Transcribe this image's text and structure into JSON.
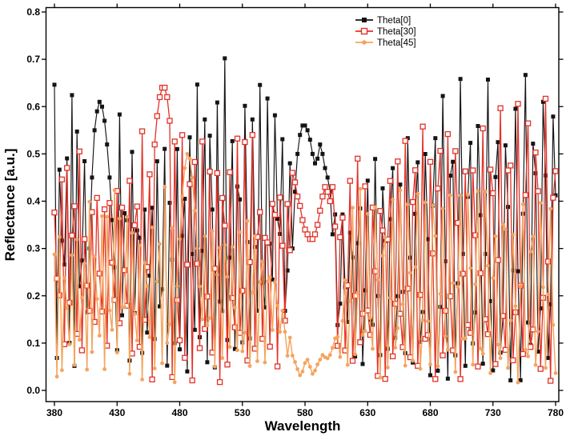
{
  "figure": {
    "background": "#ffffff",
    "axis_color": "#000000"
  },
  "chart_data": {
    "type": "line",
    "title": "",
    "xlabel": "Wavelength",
    "ylabel": "Reflectance [a.u.]",
    "xlim": [
      380,
      780
    ],
    "ylim": [
      0.0,
      0.8
    ],
    "xticks": [
      380,
      430,
      480,
      530,
      580,
      630,
      680,
      730,
      780
    ],
    "xtick_labels": [
      "380",
      "430",
      "480",
      "530",
      "580",
      "630",
      "680",
      "730",
      "780"
    ],
    "yticks": [
      0.0,
      0.1,
      0.2,
      0.3,
      0.4,
      0.5,
      0.6,
      0.7,
      0.8
    ],
    "ytick_labels": [
      "0.0",
      "0.1",
      "0.2",
      "0.3",
      "0.4",
      "0.5",
      "0.6",
      "0.7",
      "0.8"
    ],
    "grid": false,
    "ticks": "short outward ticks on all four spines; labels only left and bottom",
    "legend": {
      "position": "inside top, right of center, no frame"
    },
    "sample_step_nm": 2,
    "note": "Dense interference fringes oscillating between envelopes; individual fringe points are unresolvable, so series are described by envelope breakpoints [wavelength_nm, reflectance], explicit smooth segments read from the plot, and fringe oscillation parameters.",
    "series": [
      {
        "name": "Theta[0]",
        "color": "#141414",
        "marker": "filled-square",
        "marker_size": 5,
        "line_width": 1.15,
        "envelope_upper": [
          [
            380,
            0.71
          ],
          [
            386,
            0.7
          ],
          [
            392,
            0.66
          ],
          [
            398,
            0.63
          ],
          [
            404,
            0.62
          ],
          [
            430,
            0.62
          ],
          [
            436,
            0.56
          ],
          [
            444,
            0.5
          ],
          [
            450,
            0.46
          ],
          [
            456,
            0.49
          ],
          [
            462,
            0.53
          ],
          [
            468,
            0.57
          ],
          [
            474,
            0.61
          ],
          [
            480,
            0.64
          ],
          [
            488,
            0.68
          ],
          [
            496,
            0.71
          ],
          [
            506,
            0.72
          ],
          [
            516,
            0.71
          ],
          [
            526,
            0.72
          ],
          [
            536,
            0.69
          ],
          [
            546,
            0.67
          ],
          [
            556,
            0.65
          ],
          [
            564,
            0.61
          ],
          [
            569,
            0.55
          ],
          [
            603,
            0.45
          ],
          [
            612,
            0.45
          ],
          [
            620,
            0.44
          ],
          [
            628,
            0.48
          ],
          [
            636,
            0.52
          ],
          [
            644,
            0.56
          ],
          [
            652,
            0.58
          ],
          [
            660,
            0.61
          ],
          [
            668,
            0.64
          ],
          [
            676,
            0.67
          ],
          [
            684,
            0.69
          ],
          [
            692,
            0.71
          ],
          [
            700,
            0.7
          ],
          [
            708,
            0.68
          ],
          [
            716,
            0.7
          ],
          [
            724,
            0.71
          ],
          [
            732,
            0.7
          ],
          [
            740,
            0.71
          ],
          [
            748,
            0.7
          ],
          [
            756,
            0.71
          ],
          [
            764,
            0.7
          ],
          [
            772,
            0.71
          ],
          [
            780,
            0.72
          ]
        ],
        "envelope_lower": [
          [
            380,
            0.1
          ],
          [
            400,
            0.14
          ],
          [
            420,
            0.15
          ],
          [
            440,
            0.12
          ],
          [
            460,
            0.08
          ],
          [
            480,
            0.03
          ],
          [
            500,
            0.04
          ],
          [
            520,
            0.06
          ],
          [
            540,
            0.1
          ],
          [
            562,
            0.22
          ],
          [
            604,
            0.12
          ],
          [
            620,
            0.08
          ],
          [
            640,
            0.06
          ],
          [
            660,
            0.05
          ],
          [
            680,
            0.03
          ],
          [
            700,
            0.04
          ],
          [
            720,
            0.05
          ],
          [
            740,
            0.04
          ],
          [
            760,
            0.05
          ],
          [
            780,
            0.06
          ]
        ],
        "smooth_segments": [
          [
            [
              408,
              0.3
            ],
            [
              410,
              0.45
            ],
            [
              412,
              0.55
            ],
            [
              414,
              0.59
            ],
            [
              416,
              0.61
            ],
            [
              418,
              0.6
            ],
            [
              420,
              0.57
            ],
            [
              422,
              0.52
            ],
            [
              424,
              0.45
            ],
            [
              426,
              0.36
            ],
            [
              428,
              0.26
            ]
          ],
          [
            [
              570,
              0.3
            ],
            [
              572,
              0.42
            ],
            [
              574,
              0.5
            ],
            [
              576,
              0.54
            ],
            [
              578,
              0.56
            ],
            [
              580,
              0.56
            ],
            [
              582,
              0.55
            ],
            [
              584,
              0.53
            ],
            [
              586,
              0.5
            ],
            [
              588,
              0.48
            ],
            [
              590,
              0.49
            ],
            [
              592,
              0.52
            ],
            [
              594,
              0.5
            ],
            [
              596,
              0.47
            ],
            [
              598,
              0.45
            ],
            [
              600,
              0.42
            ],
            [
              602,
              0.33
            ]
          ]
        ],
        "oscillation": {
          "period_nm": 4.55,
          "period_growth_per_nm": 0.0035,
          "phase_rad": 1.4
        }
      },
      {
        "name": "Theta[30]",
        "color": "#e23228",
        "marker": "open-square",
        "marker_size": 6,
        "line_width": 1.3,
        "envelope_upper": [
          [
            380,
            0.62
          ],
          [
            388,
            0.6
          ],
          [
            396,
            0.58
          ],
          [
            404,
            0.55
          ],
          [
            412,
            0.51
          ],
          [
            420,
            0.48
          ],
          [
            428,
            0.52
          ],
          [
            436,
            0.55
          ],
          [
            444,
            0.58
          ],
          [
            452,
            0.6
          ],
          [
            458,
            0.62
          ],
          [
            474,
            0.64
          ],
          [
            482,
            0.66
          ],
          [
            490,
            0.65
          ],
          [
            498,
            0.63
          ],
          [
            508,
            0.62
          ],
          [
            518,
            0.63
          ],
          [
            528,
            0.62
          ],
          [
            538,
            0.6
          ],
          [
            548,
            0.56
          ],
          [
            558,
            0.52
          ],
          [
            568,
            0.47
          ],
          [
            603,
            0.45
          ],
          [
            610,
            0.5
          ],
          [
            618,
            0.51
          ],
          [
            626,
            0.52
          ],
          [
            636,
            0.53
          ],
          [
            646,
            0.56
          ],
          [
            656,
            0.58
          ],
          [
            666,
            0.6
          ],
          [
            676,
            0.61
          ],
          [
            686,
            0.63
          ],
          [
            696,
            0.62
          ],
          [
            708,
            0.63
          ],
          [
            720,
            0.62
          ],
          [
            732,
            0.64
          ],
          [
            744,
            0.63
          ],
          [
            756,
            0.64
          ],
          [
            768,
            0.63
          ],
          [
            780,
            0.64
          ]
        ],
        "envelope_lower": [
          [
            380,
            0.06
          ],
          [
            400,
            0.08
          ],
          [
            420,
            0.1
          ],
          [
            440,
            0.08
          ],
          [
            460,
            0.05
          ],
          [
            480,
            0.03
          ],
          [
            500,
            0.04
          ],
          [
            520,
            0.05
          ],
          [
            540,
            0.08
          ],
          [
            562,
            0.18
          ],
          [
            604,
            0.1
          ],
          [
            624,
            0.06
          ],
          [
            644,
            0.05
          ],
          [
            664,
            0.04
          ],
          [
            684,
            0.03
          ],
          [
            704,
            0.04
          ],
          [
            724,
            0.05
          ],
          [
            744,
            0.04
          ],
          [
            764,
            0.05
          ],
          [
            780,
            0.05
          ]
        ],
        "smooth_segments": [
          [
            [
              460,
              0.52
            ],
            [
              462,
              0.58
            ],
            [
              464,
              0.62
            ],
            [
              466,
              0.64
            ],
            [
              468,
              0.64
            ],
            [
              470,
              0.62
            ],
            [
              472,
              0.57
            ]
          ],
          [
            [
              570,
              0.46
            ],
            [
              572,
              0.44
            ],
            [
              574,
              0.41
            ],
            [
              576,
              0.39
            ],
            [
              578,
              0.36
            ],
            [
              580,
              0.34
            ],
            [
              582,
              0.33
            ],
            [
              584,
              0.32
            ],
            [
              586,
              0.32
            ],
            [
              588,
              0.33
            ],
            [
              590,
              0.35
            ],
            [
              592,
              0.38
            ],
            [
              594,
              0.41
            ],
            [
              596,
              0.43
            ],
            [
              598,
              0.42
            ],
            [
              600,
              0.4
            ],
            [
              602,
              0.43
            ]
          ]
        ],
        "oscillation": {
          "period_nm": 4.75,
          "period_growth_per_nm": 0.003,
          "phase_rad": 0.6
        }
      },
      {
        "name": "Theta[45]",
        "color": "#f4a45f",
        "marker": "filled-circle",
        "marker_size": 4.8,
        "line_width": 1.45,
        "envelope_upper": [
          [
            380,
            0.42
          ],
          [
            388,
            0.4
          ],
          [
            396,
            0.38
          ],
          [
            404,
            0.4
          ],
          [
            412,
            0.43
          ],
          [
            420,
            0.45
          ],
          [
            428,
            0.46
          ],
          [
            436,
            0.44
          ],
          [
            444,
            0.42
          ],
          [
            452,
            0.44
          ],
          [
            460,
            0.46
          ],
          [
            468,
            0.48
          ],
          [
            476,
            0.49
          ],
          [
            500,
            0.44
          ],
          [
            510,
            0.45
          ],
          [
            518,
            0.43
          ],
          [
            526,
            0.42
          ],
          [
            534,
            0.4
          ],
          [
            542,
            0.37
          ],
          [
            550,
            0.32
          ],
          [
            558,
            0.26
          ],
          [
            566,
            0.16
          ],
          [
            571,
            0.09
          ],
          [
            605,
            0.13
          ],
          [
            612,
            0.3
          ],
          [
            618,
            0.42
          ],
          [
            626,
            0.47
          ],
          [
            634,
            0.45
          ],
          [
            642,
            0.44
          ],
          [
            650,
            0.45
          ],
          [
            658,
            0.46
          ],
          [
            666,
            0.47
          ],
          [
            674,
            0.48
          ],
          [
            682,
            0.5
          ],
          [
            690,
            0.49
          ],
          [
            700,
            0.47
          ],
          [
            712,
            0.46
          ],
          [
            724,
            0.47
          ],
          [
            736,
            0.45
          ],
          [
            748,
            0.44
          ],
          [
            760,
            0.43
          ],
          [
            772,
            0.41
          ],
          [
            780,
            0.4
          ]
        ],
        "envelope_lower": [
          [
            380,
            0.03
          ],
          [
            400,
            0.05
          ],
          [
            420,
            0.06
          ],
          [
            440,
            0.05
          ],
          [
            460,
            0.04
          ],
          [
            480,
            0.04
          ],
          [
            500,
            0.05
          ],
          [
            520,
            0.06
          ],
          [
            540,
            0.06
          ],
          [
            558,
            0.08
          ],
          [
            572,
            0.03
          ],
          [
            606,
            0.06
          ],
          [
            630,
            0.05
          ],
          [
            660,
            0.04
          ],
          [
            690,
            0.03
          ],
          [
            720,
            0.04
          ],
          [
            750,
            0.03
          ],
          [
            780,
            0.03
          ]
        ],
        "smooth_segments": [
          [
            [
              478,
              0.22
            ],
            [
              480,
              0.32
            ],
            [
              482,
              0.41
            ],
            [
              484,
              0.47
            ],
            [
              486,
              0.5
            ],
            [
              488,
              0.49
            ],
            [
              490,
              0.45
            ],
            [
              492,
              0.38
            ],
            [
              494,
              0.3
            ],
            [
              496,
              0.22
            ],
            [
              498,
              0.15
            ]
          ],
          [
            [
              572,
              0.06
            ],
            [
              574,
              0.045
            ],
            [
              576,
              0.032
            ],
            [
              578,
              0.04
            ],
            [
              580,
              0.058
            ],
            [
              582,
              0.065
            ],
            [
              584,
              0.05
            ],
            [
              586,
              0.035
            ],
            [
              588,
              0.042
            ],
            [
              590,
              0.055
            ],
            [
              592,
              0.065
            ],
            [
              594,
              0.075
            ],
            [
              596,
              0.07
            ],
            [
              598,
              0.068
            ],
            [
              600,
              0.075
            ],
            [
              602,
              0.09
            ],
            [
              604,
              0.11
            ]
          ]
        ],
        "oscillation": {
          "period_nm": 4.65,
          "period_growth_per_nm": 0.0032,
          "phase_rad": 2.2
        }
      }
    ]
  }
}
